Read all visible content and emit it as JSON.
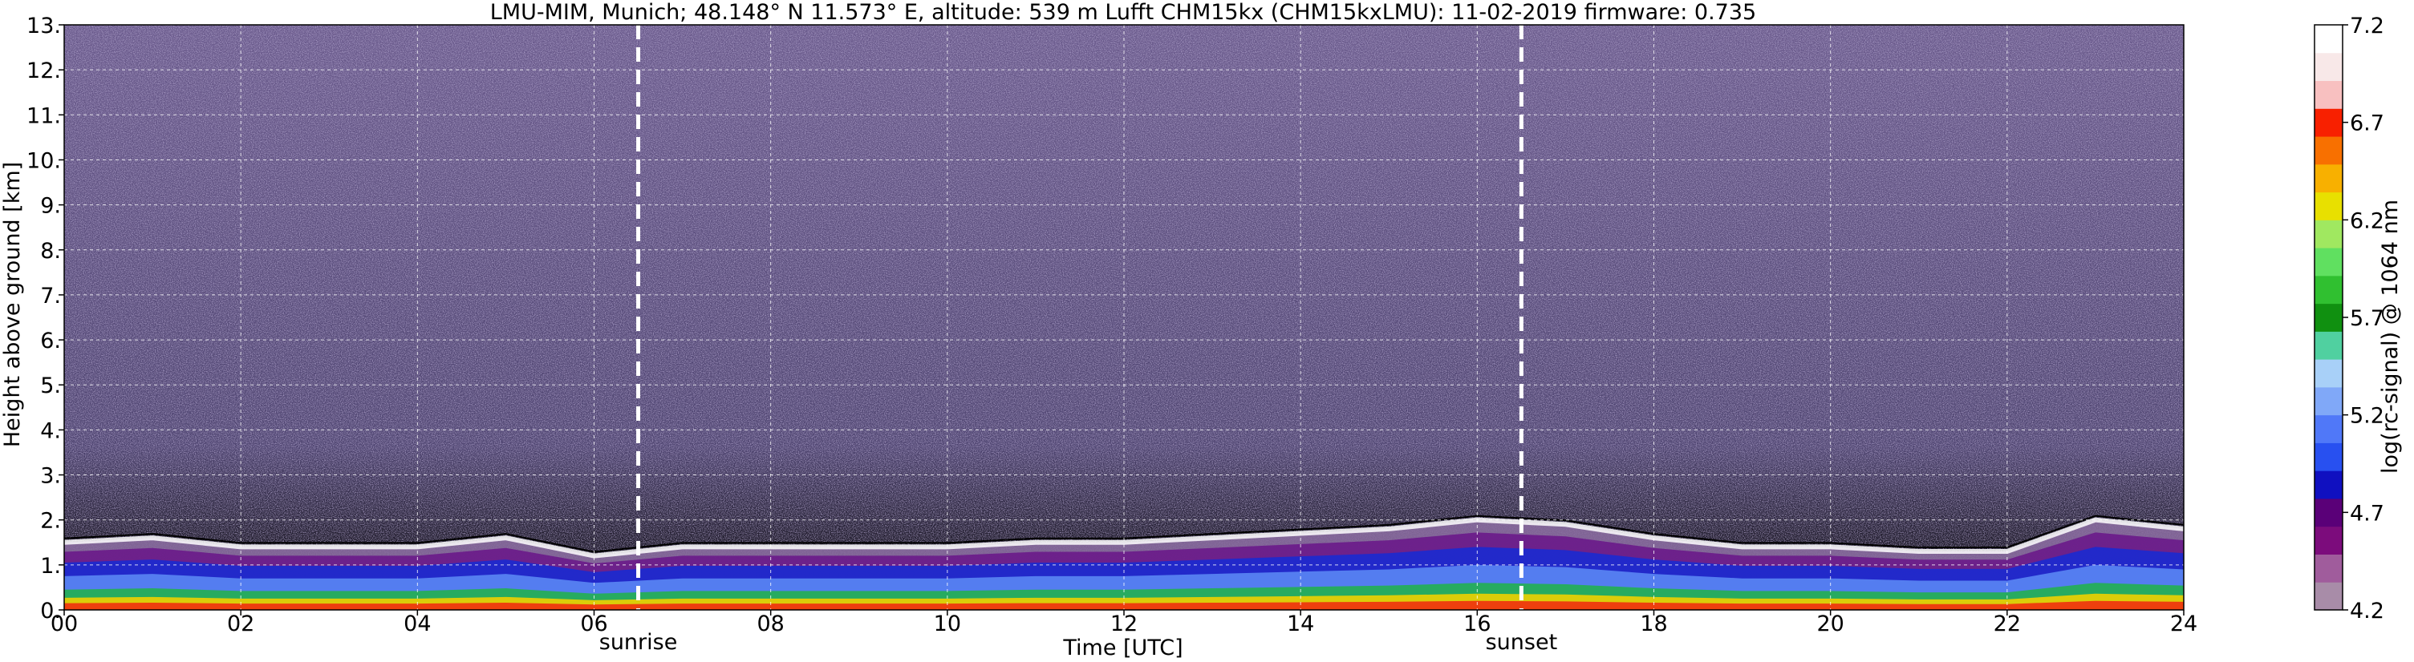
{
  "chart_data": {
    "type": "heatmap",
    "title": "LMU-MIM, Munich; 48.148° N 11.573° E, altitude: 539 m    Lufft CHM15kx (CHM15kxLMU): 11-02-2019    firmware: 0.735",
    "xlabel": "Time [UTC]",
    "ylabel": "Height above ground [km]",
    "x_ticks": [
      "00",
      "02",
      "04",
      "06",
      "08",
      "10",
      "12",
      "14",
      "16",
      "18",
      "20",
      "22",
      "24"
    ],
    "y_ticks": [
      "0.",
      "1.",
      "2.",
      "3.",
      "4.",
      "5.",
      "6.",
      "7.",
      "8.",
      "9.",
      "10.",
      "11.",
      "12.",
      "13."
    ],
    "xlim": [
      0,
      24
    ],
    "ylim": [
      0,
      13
    ],
    "grid": true,
    "annotations": [
      {
        "name": "sunrise",
        "label": "sunrise",
        "x": 6.5,
        "style": "dashed-white-line"
      },
      {
        "name": "sunset",
        "label": "sunset",
        "x": 16.5,
        "style": "dashed-white-line"
      }
    ],
    "colorbar": {
      "label": "log(rc-signal) @ 1064 nm",
      "ticks": [
        "4.2",
        "4.7",
        "5.2",
        "5.7",
        "6.2",
        "6.7",
        "7.2"
      ],
      "range": [
        4.2,
        7.2
      ],
      "colors": [
        "#a88ca8",
        "#a05c9c",
        "#7c0c7c",
        "#5a0078",
        "#1010c0",
        "#2850f0",
        "#5078f8",
        "#80a8f8",
        "#a8d0f8",
        "#50d0a0",
        "#109010",
        "#30c030",
        "#60e060",
        "#a0e860",
        "#e8e000",
        "#f8b000",
        "#f87000",
        "#f82000",
        "#f8c0c0",
        "#f8e8e8",
        "#ffffff"
      ]
    },
    "layers": [
      {
        "name": "boundary-layer",
        "x": [
          0,
          1,
          2,
          3,
          4,
          5,
          6,
          7,
          8,
          9,
          10,
          11,
          12,
          13,
          14,
          15,
          16,
          17,
          18,
          19,
          20,
          21,
          22,
          23,
          24
        ],
        "top_km": [
          1.5,
          1.6,
          1.4,
          1.4,
          1.4,
          1.6,
          1.2,
          1.4,
          1.4,
          1.4,
          1.4,
          1.5,
          1.5,
          1.6,
          1.7,
          1.8,
          2.0,
          1.9,
          1.6,
          1.4,
          1.4,
          1.3,
          1.3,
          2.0,
          1.8
        ]
      }
    ],
    "noise_above_km": 1.6
  }
}
